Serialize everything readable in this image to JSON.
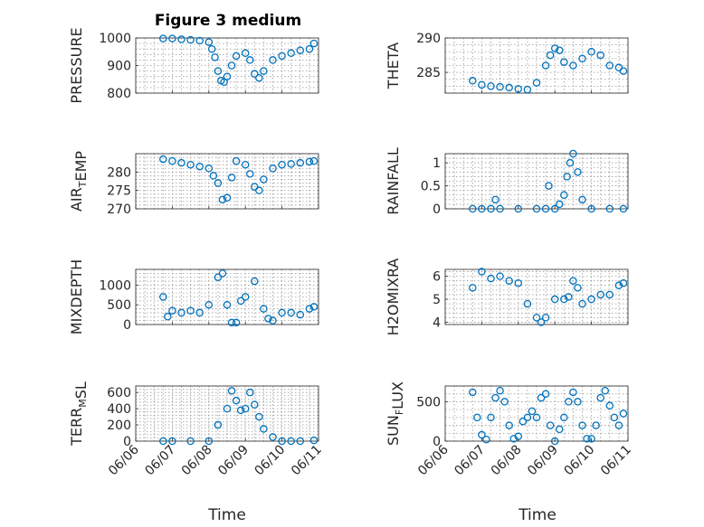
{
  "figure_title": "Figure 3 medium",
  "colors": {
    "marker": "#0072BD",
    "axes": "#262626",
    "grid": "#9a9a9a"
  },
  "x_tick_labels": [
    "06/06",
    "06/07",
    "06/08",
    "06/09",
    "06/10",
    "06/11"
  ],
  "x_axis_label": "Time",
  "chart_data": [
    {
      "type": "scatter",
      "ylabel_parts": [
        [
          "PRESSURE",
          ""
        ]
      ],
      "ylim": [
        800,
        1000
      ],
      "yticks": [
        800,
        900,
        1000
      ],
      "xlim": [
        "2023-06-06",
        "2023-06-11"
      ],
      "grid": true,
      "x": [
        "06/06 18:00",
        "06/07 00:00",
        "06/07 06:00",
        "06/07 12:00",
        "06/07 18:00",
        "06/08 00:00",
        "06/08 02:00",
        "06/08 04:00",
        "06/08 06:00",
        "06/08 08:00",
        "06/08 10:00",
        "06/08 12:00",
        "06/08 15:00",
        "06/08 18:00",
        "06/09 00:00",
        "06/09 03:00",
        "06/09 06:00",
        "06/09 09:00",
        "06/09 12:00",
        "06/09 18:00",
        "06/10 00:00",
        "06/10 06:00",
        "06/10 12:00",
        "06/10 18:00",
        "06/10 21:00"
      ],
      "y": [
        998,
        998,
        995,
        993,
        990,
        985,
        960,
        930,
        880,
        845,
        840,
        860,
        900,
        935,
        945,
        920,
        870,
        855,
        880,
        920,
        935,
        945,
        955,
        960,
        980
      ]
    },
    {
      "type": "scatter",
      "ylabel_parts": [
        [
          "THETA",
          ""
        ]
      ],
      "ylim": [
        282,
        290
      ],
      "yticks": [
        285,
        290
      ],
      "x": [
        "06/06 18:00",
        "06/07 00:00",
        "06/07 06:00",
        "06/07 12:00",
        "06/07 18:00",
        "06/08 00:00",
        "06/08 06:00",
        "06/08 12:00",
        "06/08 18:00",
        "06/08 21:00",
        "06/09 00:00",
        "06/09 03:00",
        "06/09 06:00",
        "06/09 12:00",
        "06/09 18:00",
        "06/10 00:00",
        "06/10 06:00",
        "06/10 12:00",
        "06/10 18:00",
        "06/10 21:00"
      ],
      "y": [
        283.8,
        283.2,
        283.0,
        282.9,
        282.8,
        282.6,
        282.5,
        283.5,
        286.0,
        287.5,
        288.5,
        288.2,
        286.5,
        286.0,
        287.0,
        288.0,
        287.5,
        286.0,
        285.7,
        285.2
      ]
    },
    {
      "type": "scatter",
      "ylabel_parts": [
        [
          "AIR",
          ""
        ],
        [
          "T",
          "sub"
        ],
        [
          "EMP",
          ""
        ]
      ],
      "ylim": [
        270,
        285
      ],
      "yticks": [
        270,
        275,
        280
      ],
      "x": [
        "06/06 18:00",
        "06/07 00:00",
        "06/07 06:00",
        "06/07 12:00",
        "06/07 18:00",
        "06/08 00:00",
        "06/08 03:00",
        "06/08 06:00",
        "06/08 09:00",
        "06/08 12:00",
        "06/08 15:00",
        "06/08 18:00",
        "06/09 00:00",
        "06/09 03:00",
        "06/09 06:00",
        "06/09 09:00",
        "06/09 12:00",
        "06/09 18:00",
        "06/10 00:00",
        "06/10 06:00",
        "06/10 12:00",
        "06/10 18:00",
        "06/10 21:00"
      ],
      "y": [
        283.5,
        283.0,
        282.5,
        282.0,
        281.5,
        281.0,
        279.0,
        277.0,
        272.5,
        273.0,
        278.5,
        283.0,
        282.0,
        279.5,
        276.0,
        275.0,
        278.0,
        281.0,
        282.0,
        282.2,
        282.5,
        282.8,
        283.0
      ]
    },
    {
      "type": "scatter",
      "ylabel_parts": [
        [
          "RAINFALL",
          ""
        ]
      ],
      "ylim": [
        0,
        1.2
      ],
      "yticks": [
        0,
        0.5,
        1
      ],
      "x": [
        "06/06 18:00",
        "06/07 00:00",
        "06/07 06:00",
        "06/07 09:00",
        "06/07 12:00",
        "06/08 00:00",
        "06/08 12:00",
        "06/08 18:00",
        "06/08 20:00",
        "06/09 00:00",
        "06/09 03:00",
        "06/09 06:00",
        "06/09 08:00",
        "06/09 10:00",
        "06/09 12:00",
        "06/09 15:00",
        "06/09 18:00",
        "06/10 00:00",
        "06/10 12:00",
        "06/10 21:00"
      ],
      "y": [
        0,
        0,
        0,
        0.2,
        0,
        0,
        0,
        0,
        0.5,
        0,
        0.1,
        0.3,
        0.7,
        1.0,
        1.2,
        0.8,
        0.2,
        0,
        0,
        0
      ]
    },
    {
      "type": "scatter",
      "ylabel_parts": [
        [
          "MIXDEPTH",
          ""
        ]
      ],
      "ylim": [
        0,
        1400
      ],
      "yticks": [
        0,
        500,
        1000
      ],
      "x": [
        "06/06 18:00",
        "06/06 21:00",
        "06/07 00:00",
        "06/07 06:00",
        "06/07 12:00",
        "06/07 18:00",
        "06/08 00:00",
        "06/08 06:00",
        "06/08 09:00",
        "06/08 12:00",
        "06/08 15:00",
        "06/08 18:00",
        "06/08 21:00",
        "06/09 00:00",
        "06/09 06:00",
        "06/09 12:00",
        "06/09 15:00",
        "06/09 18:00",
        "06/10 00:00",
        "06/10 06:00",
        "06/10 12:00",
        "06/10 18:00",
        "06/10 21:00"
      ],
      "y": [
        700,
        200,
        350,
        300,
        350,
        300,
        500,
        1200,
        1300,
        500,
        50,
        50,
        600,
        700,
        1100,
        400,
        150,
        100,
        300,
        300,
        250,
        400,
        450
      ]
    },
    {
      "type": "scatter",
      "ylabel_parts": [
        [
          "H2OMIXRA",
          ""
        ]
      ],
      "ylim": [
        3.9,
        6.3
      ],
      "yticks": [
        4,
        5,
        6
      ],
      "x": [
        "06/06 18:00",
        "06/07 00:00",
        "06/07 06:00",
        "06/07 12:00",
        "06/07 18:00",
        "06/08 00:00",
        "06/08 06:00",
        "06/08 12:00",
        "06/08 15:00",
        "06/08 18:00",
        "06/09 00:00",
        "06/09 06:00",
        "06/09 09:00",
        "06/09 12:00",
        "06/09 15:00",
        "06/09 18:00",
        "06/10 00:00",
        "06/10 06:00",
        "06/10 12:00",
        "06/10 18:00",
        "06/10 21:00"
      ],
      "y": [
        5.5,
        6.2,
        5.9,
        6.0,
        5.8,
        5.7,
        4.8,
        4.2,
        4.0,
        4.2,
        5.0,
        5.0,
        5.1,
        5.8,
        5.5,
        4.8,
        5.0,
        5.2,
        5.2,
        5.6,
        5.7
      ]
    },
    {
      "type": "scatter",
      "ylabel_parts": [
        [
          "TERR",
          ""
        ],
        [
          "M",
          "sub"
        ],
        [
          "SL",
          ""
        ]
      ],
      "ylim": [
        0,
        680
      ],
      "yticks": [
        0,
        200,
        400,
        600
      ],
      "x": [
        "06/06 18:00",
        "06/07 00:00",
        "06/07 12:00",
        "06/08 00:00",
        "06/08 06:00",
        "06/08 12:00",
        "06/08 15:00",
        "06/08 18:00",
        "06/08 21:00",
        "06/09 00:00",
        "06/09 03:00",
        "06/09 06:00",
        "06/09 09:00",
        "06/09 12:00",
        "06/09 18:00",
        "06/10 00:00",
        "06/10 06:00",
        "06/10 12:00",
        "06/10 21:00"
      ],
      "y": [
        0,
        0,
        0,
        0,
        200,
        400,
        620,
        500,
        380,
        400,
        600,
        450,
        300,
        150,
        50,
        0,
        0,
        0,
        10
      ]
    },
    {
      "type": "scatter",
      "ylabel_parts": [
        [
          "SUN",
          ""
        ],
        [
          "F",
          "sub"
        ],
        [
          "LUX",
          ""
        ]
      ],
      "ylim": [
        0,
        700
      ],
      "yticks": [
        0,
        500
      ],
      "x": [
        "06/06 18:00",
        "06/06 21:00",
        "06/07 00:00",
        "06/07 03:00",
        "06/07 06:00",
        "06/07 09:00",
        "06/07 12:00",
        "06/07 15:00",
        "06/07 18:00",
        "06/07 21:00",
        "06/08 00:00",
        "06/08 03:00",
        "06/08 06:00",
        "06/08 09:00",
        "06/08 12:00",
        "06/08 15:00",
        "06/08 18:00",
        "06/08 21:00",
        "06/09 00:00",
        "06/09 03:00",
        "06/09 06:00",
        "06/09 09:00",
        "06/09 12:00",
        "06/09 15:00",
        "06/09 18:00",
        "06/09 21:00",
        "06/10 00:00",
        "06/10 03:00",
        "06/10 06:00",
        "06/10 09:00",
        "06/10 12:00",
        "06/10 15:00",
        "06/10 18:00",
        "06/10 21:00"
      ],
      "y": [
        620,
        300,
        80,
        20,
        300,
        550,
        640,
        500,
        200,
        30,
        60,
        250,
        300,
        380,
        300,
        550,
        600,
        200,
        0,
        150,
        300,
        500,
        620,
        500,
        200,
        30,
        30,
        200,
        550,
        640,
        450,
        300,
        200,
        350
      ]
    }
  ]
}
